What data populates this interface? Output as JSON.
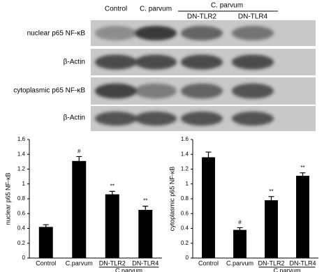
{
  "blot": {
    "header": {
      "lanes": [
        "Control",
        "C. parvum",
        "DN-TLR2",
        "DN-TLR4"
      ],
      "group": "C. parvum"
    },
    "rows": [
      "nuclear p65 NF-κB",
      "β-Actin",
      "cytoplasmic p65 NF-κB",
      "β-Actin"
    ]
  },
  "chart_data": [
    {
      "type": "bar",
      "ylabel": "nuclear p65 NF-κB",
      "categories": [
        "Control",
        "C.parvum",
        "DN-TLR2",
        "DN-TLR4"
      ],
      "group_label": "C.parvum",
      "values": [
        0.42,
        1.31,
        0.86,
        0.65
      ],
      "errors": [
        0.03,
        0.06,
        0.04,
        0.05
      ],
      "annotations": [
        null,
        "#",
        "**",
        "**"
      ],
      "color": "#000000",
      "ylim": [
        0,
        1.6
      ],
      "yticks": [
        0,
        0.2,
        0.4,
        0.6,
        0.8,
        1,
        1.2,
        1.4,
        1.6
      ],
      "grid": false
    },
    {
      "type": "bar",
      "ylabel": "cytoplasmic p65 NF-κB",
      "categories": [
        "Control",
        "C.parvum",
        "DN-TLR2",
        "DN-TLR4"
      ],
      "group_label": "C.parvum",
      "values": [
        1.36,
        0.38,
        0.78,
        1.11
      ],
      "errors": [
        0.07,
        0.03,
        0.05,
        0.04
      ],
      "annotations": [
        null,
        "#",
        "**",
        "**"
      ],
      "color": "#000000",
      "ylim": [
        0,
        1.6
      ],
      "yticks": [
        0,
        0.2,
        0.4,
        0.6,
        0.8,
        1,
        1.2,
        1.4,
        1.6
      ],
      "grid": false
    }
  ]
}
